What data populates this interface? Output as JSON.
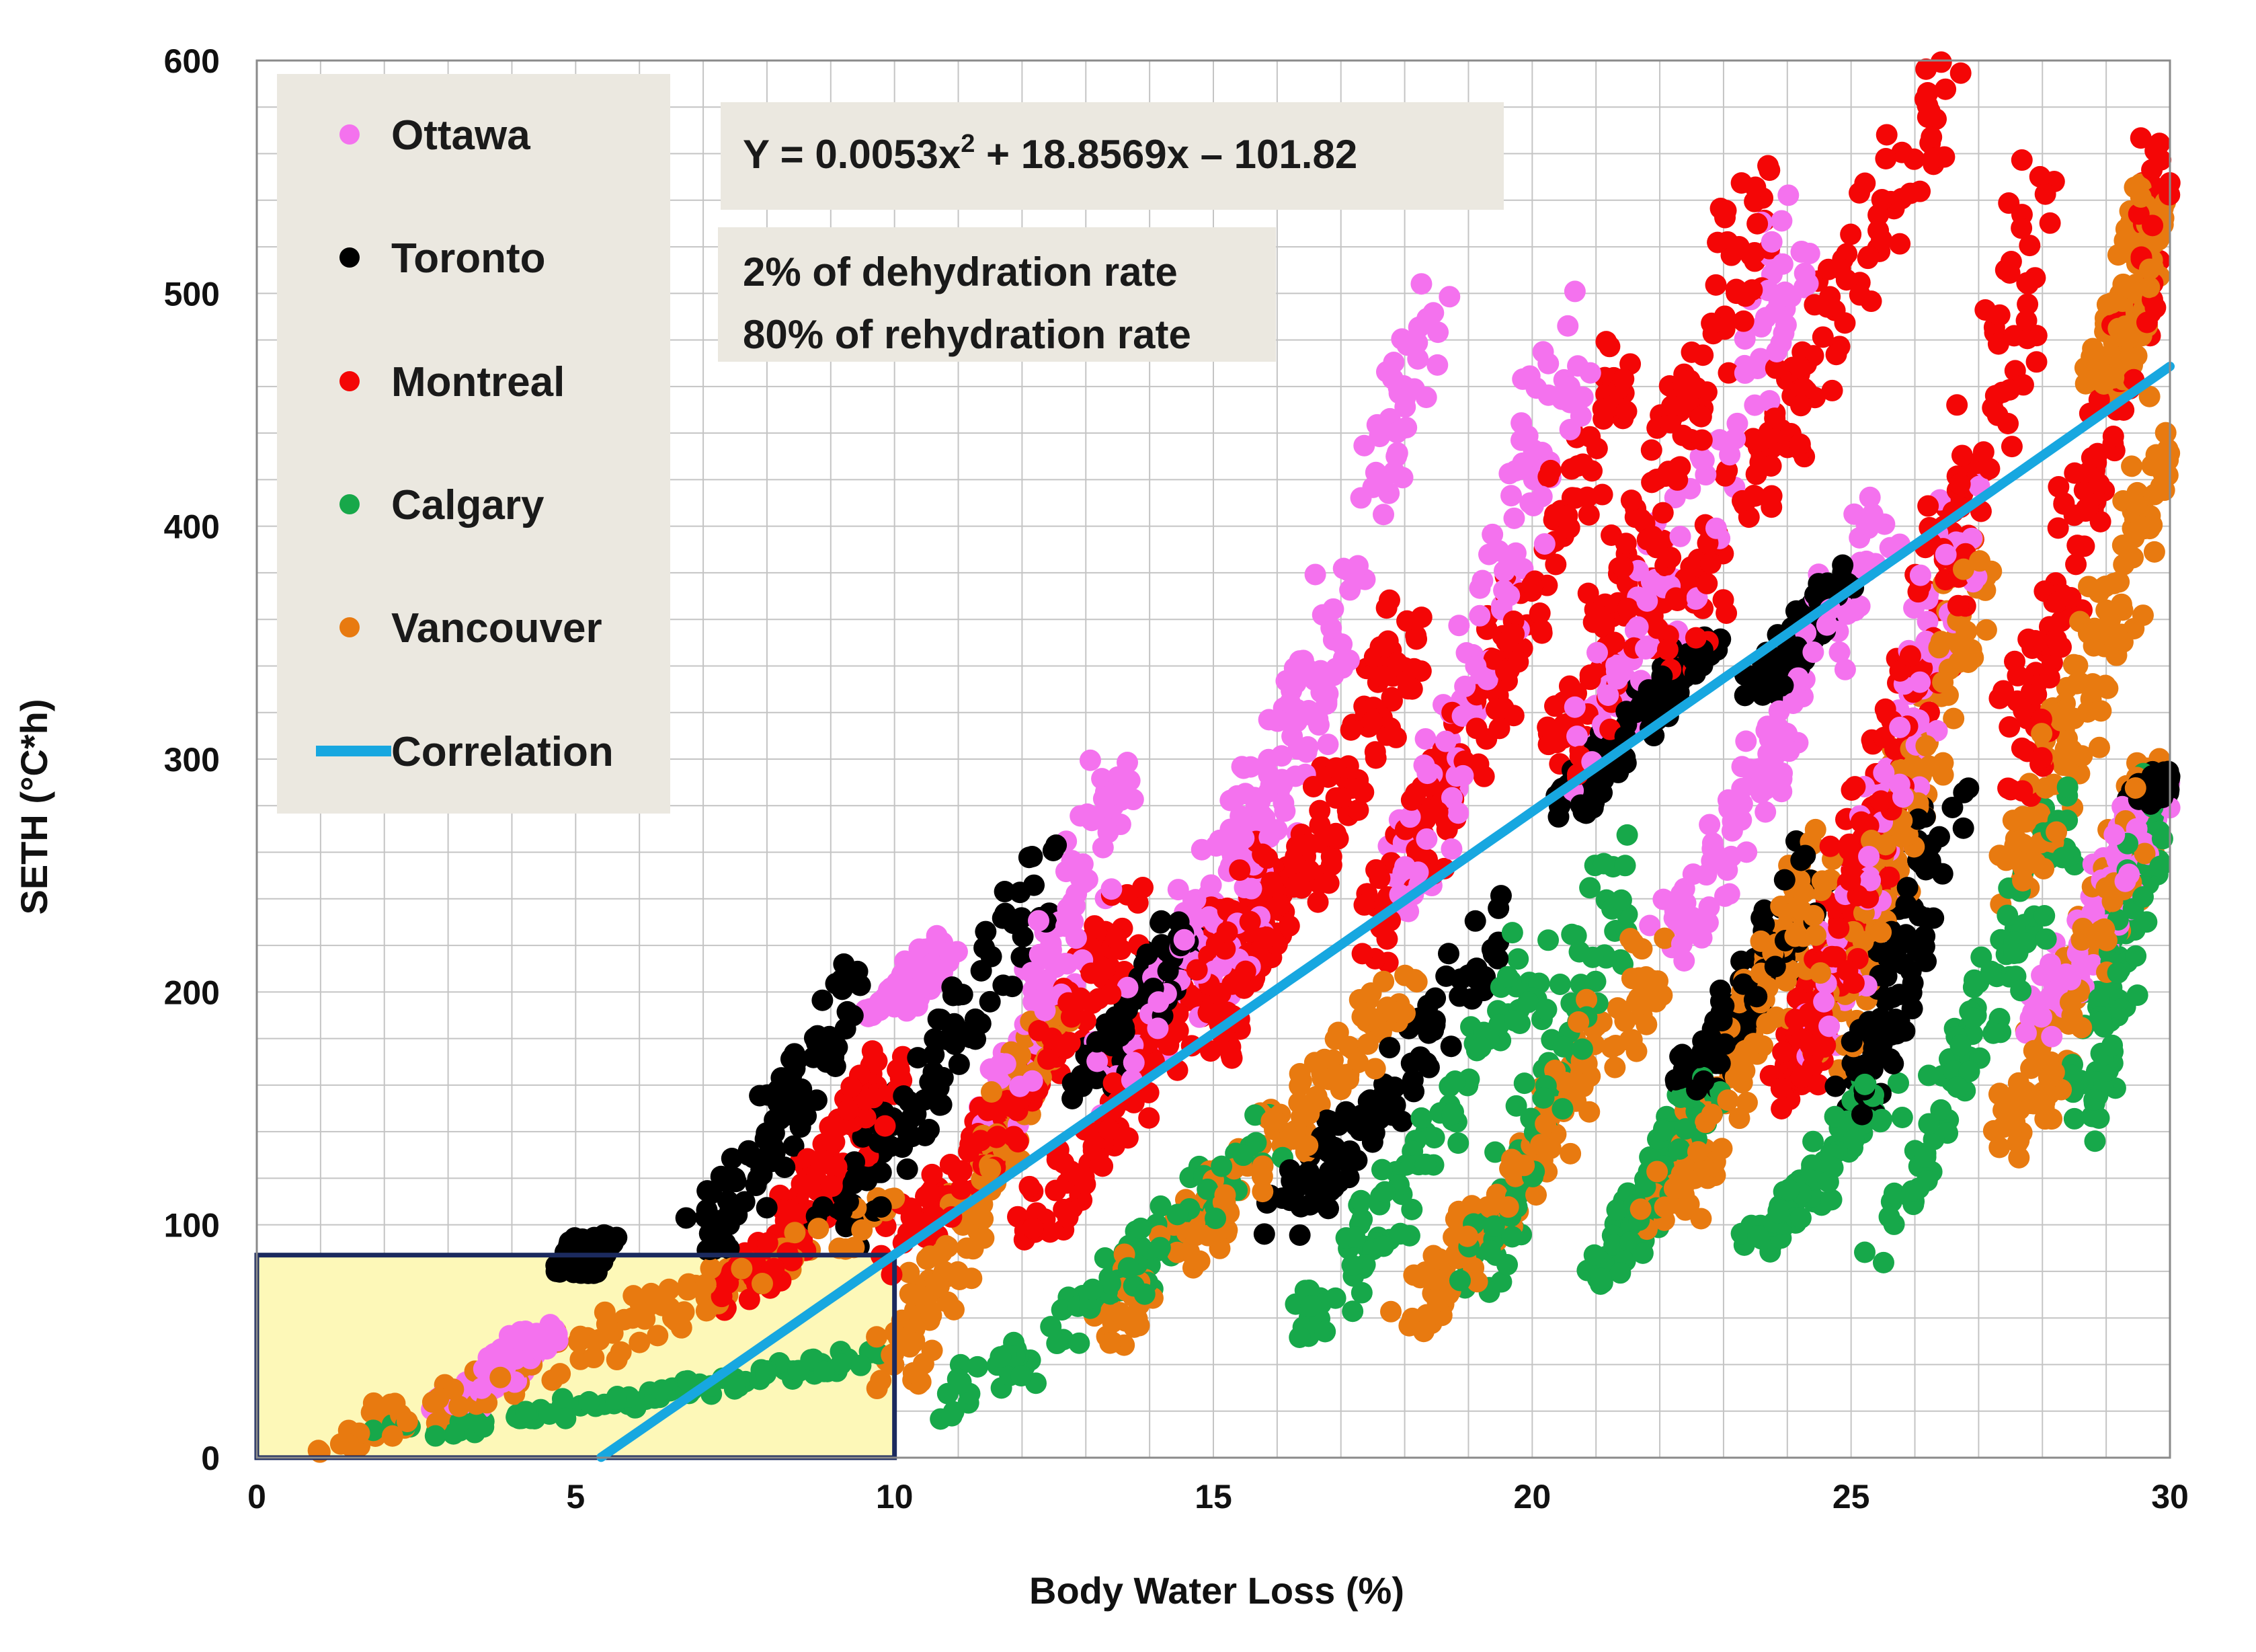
{
  "chart_data": {
    "type": "scatter",
    "xlabel": "Body Water Loss (%)",
    "ylabel": "SETH (°C*h)",
    "xlim": [
      0,
      30
    ],
    "ylim": [
      0,
      600
    ],
    "xticks": [
      0,
      5,
      10,
      15,
      20,
      25,
      30
    ],
    "yticks": [
      0,
      100,
      200,
      300,
      400,
      500,
      600
    ],
    "grid": true,
    "legend_position": "top-left",
    "series": [
      {
        "name": "Ottawa",
        "color": "#f472ee",
        "clusters": [
          [
            [
              9.8,
              190
            ],
            [
              10.8,
              222
            ]
          ],
          [
            [
              11.6,
              150
            ],
            [
              13.5,
              295
            ]
          ],
          [
            [
              13.2,
              160
            ],
            [
              16.9,
              345
            ]
          ],
          [
            [
              15.0,
              210
            ],
            [
              18.5,
              495
            ]
          ],
          [
            [
              18.0,
              250
            ],
            [
              20.7,
              494
            ]
          ],
          [
            [
              20.8,
              300
            ],
            [
              24.2,
              532
            ]
          ],
          [
            [
              22.0,
              220
            ],
            [
              25.5,
              405
            ]
          ],
          [
            [
              24.5,
              180
            ],
            [
              26.8,
              410
            ]
          ],
          [
            [
              28.0,
              190
            ],
            [
              30.0,
              300
            ]
          ],
          [
            [
              3.0,
              20
            ],
            [
              4.5,
              55
            ]
          ]
        ]
      },
      {
        "name": "Toronto",
        "color": "#000000",
        "clusters": [
          [
            [
              7.0,
              90
            ],
            [
              9.4,
              212
            ]
          ],
          [
            [
              5.0,
              80
            ],
            [
              5.3,
              95
            ]
          ],
          [
            [
              9.0,
              100
            ],
            [
              12.4,
              254
            ]
          ],
          [
            [
              13.0,
              160
            ],
            [
              14.6,
              232
            ]
          ],
          [
            [
              20.5,
              280
            ],
            [
              22.7,
              352
            ]
          ],
          [
            [
              23.5,
              330
            ],
            [
              25.0,
              382
            ]
          ],
          [
            [
              22.5,
              160
            ],
            [
              24.5,
              260
            ]
          ],
          [
            [
              16.0,
              100
            ],
            [
              19.5,
              230
            ]
          ],
          [
            [
              25.0,
              150
            ],
            [
              26.5,
              280
            ]
          ],
          [
            [
              29.5,
              280
            ],
            [
              30.0,
              295
            ]
          ]
        ]
      },
      {
        "name": "Montreal",
        "color": "#f40606",
        "clusters": [
          [
            [
              7.5,
              70
            ],
            [
              10.0,
              170
            ]
          ],
          [
            [
              10.0,
              90
            ],
            [
              13.8,
              235
            ]
          ],
          [
            [
              15.0,
              180
            ],
            [
              18.2,
              360
            ]
          ],
          [
            [
              17.5,
              230
            ],
            [
              21.5,
              475
            ]
          ],
          [
            [
              20.3,
              300
            ],
            [
              23.5,
              540
            ]
          ],
          [
            [
              22.0,
              350
            ],
            [
              26.5,
              598
            ]
          ],
          [
            [
              25.0,
              250
            ],
            [
              28.0,
              545
            ]
          ],
          [
            [
              27.5,
              300
            ],
            [
              30.0,
              558
            ]
          ],
          [
            [
              24.0,
              160
            ],
            [
              25.5,
              275
            ]
          ],
          [
            [
              12.0,
              100
            ],
            [
              16.0,
              260
            ]
          ]
        ]
      },
      {
        "name": "Calgary",
        "color": "#17a84a",
        "clusters": [
          [
            [
              2.0,
              10
            ],
            [
              9.8,
              45
            ]
          ],
          [
            [
              11.0,
              25
            ],
            [
              16.0,
              140
            ]
          ],
          [
            [
              16.5,
              60
            ],
            [
              20.0,
              215
            ]
          ],
          [
            [
              19.0,
              80
            ],
            [
              21.5,
              255
            ]
          ],
          [
            [
              21.0,
              80
            ],
            [
              22.8,
              160
            ]
          ],
          [
            [
              23.5,
              90
            ],
            [
              25.5,
              160
            ]
          ],
          [
            [
              25.5,
              100
            ],
            [
              28.5,
              285
            ]
          ],
          [
            [
              28.5,
              140
            ],
            [
              29.7,
              285
            ]
          ]
        ]
      },
      {
        "name": "Vancouver",
        "color": "#e87a10",
        "clusters": [
          [
            [
              1.0,
              5
            ],
            [
              10.0,
              110
            ]
          ],
          [
            [
              10.0,
              40
            ],
            [
              12.5,
              190
            ]
          ],
          [
            [
              13.0,
              55
            ],
            [
              18.0,
              200
            ]
          ],
          [
            [
              18.0,
              60
            ],
            [
              22.0,
              220
            ]
          ],
          [
            [
              22.0,
              100
            ],
            [
              24.5,
              260
            ]
          ],
          [
            [
              24.5,
              180
            ],
            [
              27.0,
              385
            ]
          ],
          [
            [
              27.5,
              250
            ],
            [
              30.0,
              440
            ]
          ],
          [
            [
              27.5,
              140
            ],
            [
              29.8,
              300
            ]
          ],
          [
            [
              29.0,
              460
            ],
            [
              29.8,
              545
            ]
          ]
        ]
      }
    ],
    "correlation": {
      "name": "Correlation",
      "color": "#17a7e0",
      "equation": "Y =  0.0053x² + 18.8569x – 101.82",
      "coefficients": [
        0.0053,
        18.8569,
        -101.82
      ],
      "x_range": [
        5.4,
        30
      ]
    },
    "annotations": {
      "equation_text": "Y =  0.0053x",
      "equation_sup": "2",
      "equation_rest": " + 18.8569x – 101.82",
      "note_line1": "2% of dehydration  rate",
      "note_line2": "80% of rehydration  rate"
    },
    "highlight_region": {
      "x": [
        0,
        10
      ],
      "y": [
        0,
        87
      ],
      "fill": "#fdf8b8",
      "stroke": "#1b2a5e"
    }
  }
}
